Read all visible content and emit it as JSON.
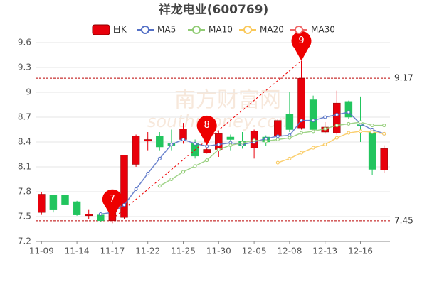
{
  "chart_data": {
    "type": "candlestick",
    "title": "祥龙电业(600769)",
    "watermark": [
      "南方财富网",
      "southmoney.com"
    ],
    "candle_name": "日K",
    "up_color": "#e8000b",
    "down_color": "#22c55e",
    "categories": [
      "11-09",
      null,
      null,
      "11-14",
      null,
      null,
      "11-17",
      null,
      null,
      "11-22",
      null,
      null,
      "11-25",
      null,
      null,
      "11-30",
      null,
      null,
      "12-05",
      null,
      null,
      "12-08",
      null,
      null,
      "12-13",
      null,
      null,
      "12-16",
      null,
      null
    ],
    "open": [
      7.55,
      7.76,
      7.76,
      7.68,
      7.51,
      7.52,
      7.45,
      7.49,
      8.13,
      8.41,
      8.47,
      8.38,
      8.43,
      8.38,
      8.27,
      8.31,
      8.46,
      8.41,
      8.33,
      8.46,
      8.47,
      8.74,
      8.57,
      8.91,
      8.52,
      8.51,
      8.89,
      8.61,
      8.52,
      8.06
    ],
    "close": [
      7.77,
      7.58,
      7.64,
      7.52,
      7.53,
      7.45,
      7.6,
      8.24,
      8.47,
      8.43,
      8.34,
      8.36,
      8.56,
      8.23,
      8.31,
      8.5,
      8.43,
      8.36,
      8.53,
      8.4,
      8.66,
      8.55,
      9.17,
      8.55,
      8.58,
      8.87,
      8.7,
      8.6,
      8.07,
      8.32
    ],
    "high": [
      7.8,
      7.76,
      7.79,
      7.69,
      7.58,
      7.56,
      7.64,
      8.24,
      8.49,
      8.52,
      8.52,
      8.55,
      8.63,
      8.43,
      8.35,
      8.53,
      8.49,
      8.52,
      8.55,
      8.48,
      8.68,
      9.0,
      9.38,
      8.96,
      8.64,
      9.02,
      8.9,
      8.95,
      8.55,
      8.36
    ],
    "low": [
      7.52,
      7.55,
      7.62,
      7.51,
      7.47,
      7.44,
      7.42,
      7.47,
      8.1,
      8.3,
      8.3,
      8.3,
      8.38,
      8.2,
      8.26,
      8.22,
      8.3,
      8.32,
      8.2,
      8.35,
      8.45,
      8.52,
      8.55,
      8.5,
      8.5,
      8.49,
      8.68,
      8.4,
      8.0,
      8.03
    ],
    "series": [
      {
        "name": "MA5",
        "color": "#5470c6",
        "values": [
          null,
          null,
          null,
          null,
          null,
          7.53,
          7.55,
          7.64,
          7.83,
          8.02,
          8.2,
          8.37,
          8.43,
          8.38,
          8.35,
          8.37,
          8.39,
          8.37,
          8.4,
          8.44,
          8.47,
          8.48,
          8.66,
          8.66,
          8.7,
          8.73,
          8.76,
          8.62,
          8.55,
          8.5
        ]
      },
      {
        "name": "MA10",
        "color": "#91cc75",
        "values": [
          null,
          null,
          null,
          null,
          null,
          null,
          null,
          null,
          null,
          null,
          7.87,
          7.95,
          8.04,
          8.11,
          8.18,
          8.31,
          8.36,
          8.39,
          8.42,
          8.41,
          8.43,
          8.45,
          8.51,
          8.53,
          8.56,
          8.6,
          8.62,
          8.64,
          8.6,
          8.6
        ]
      },
      {
        "name": "MA20",
        "color": "#fac858",
        "values": [
          null,
          null,
          null,
          null,
          null,
          null,
          null,
          null,
          null,
          null,
          null,
          null,
          null,
          null,
          null,
          null,
          null,
          null,
          null,
          null,
          8.15,
          8.2,
          8.27,
          8.33,
          8.37,
          8.45,
          8.51,
          8.53,
          8.52,
          8.5
        ]
      },
      {
        "name": "MA30",
        "color": "#ee6666",
        "values": [
          null,
          null,
          null,
          null,
          null,
          null,
          null,
          null,
          null,
          null,
          null,
          null,
          null,
          null,
          null,
          null,
          null,
          null,
          null,
          null,
          null,
          null,
          null,
          null,
          null,
          null,
          null,
          null,
          null,
          null
        ]
      }
    ],
    "ref_lines": [
      9.17,
      7.45
    ],
    "annotations": [
      {
        "label": "7",
        "x": 6,
        "value": 7.47
      },
      {
        "label": "8",
        "x": 14,
        "value": 8.36
      },
      {
        "label": "9",
        "x": 22,
        "value": 9.38
      }
    ],
    "ylim": [
      7.2,
      9.6
    ],
    "yticks": [
      7.2,
      7.5,
      7.8,
      8.1,
      8.4,
      8.7,
      9,
      9.3,
      9.6
    ],
    "grid": true
  }
}
